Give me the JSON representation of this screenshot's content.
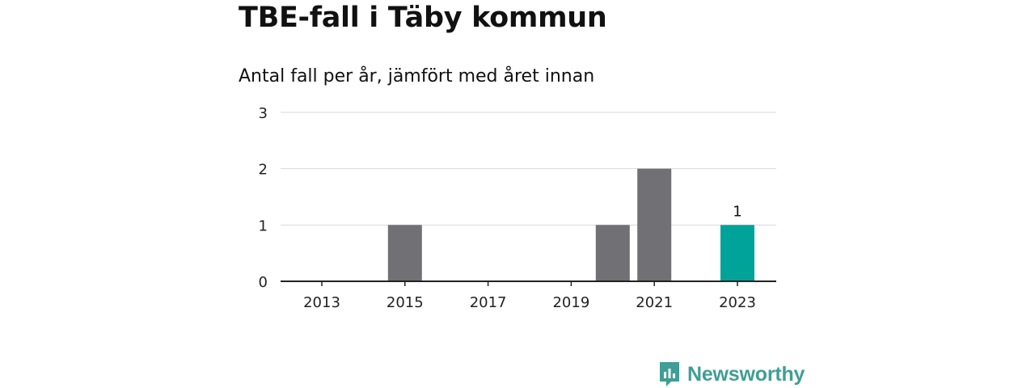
{
  "title": "TBE-fall i Täby kommun",
  "subtitle": "Antal fall per år, jämfört med året innan",
  "brand": {
    "name": "Newsworthy",
    "icon": "newsworthy-logo-icon",
    "color": "#3f9e95"
  },
  "colors": {
    "bar": "#707075",
    "highlight": "#00a398",
    "grid": "#d9d9d9",
    "axis": "#222222"
  },
  "chart_data": {
    "type": "bar",
    "title": "TBE-fall i Täby kommun",
    "subtitle": "Antal fall per år, jämfört med året innan",
    "categories": [
      "2013",
      "2014",
      "2015",
      "2016",
      "2017",
      "2018",
      "2019",
      "2020",
      "2021",
      "2022",
      "2023"
    ],
    "values": [
      0,
      0,
      1,
      0,
      0,
      0,
      0,
      1,
      2,
      0,
      1
    ],
    "highlight_category": "2023",
    "data_labels": [
      {
        "category": "2023",
        "text": "1"
      }
    ],
    "x_tick_labels": [
      "2013",
      "2015",
      "2017",
      "2019",
      "2021",
      "2023"
    ],
    "y_tick_labels": [
      "0",
      "1",
      "2",
      "3"
    ],
    "ylim": [
      0,
      3
    ],
    "xlabel": "",
    "ylabel": "",
    "grid": true,
    "legend": false
  }
}
